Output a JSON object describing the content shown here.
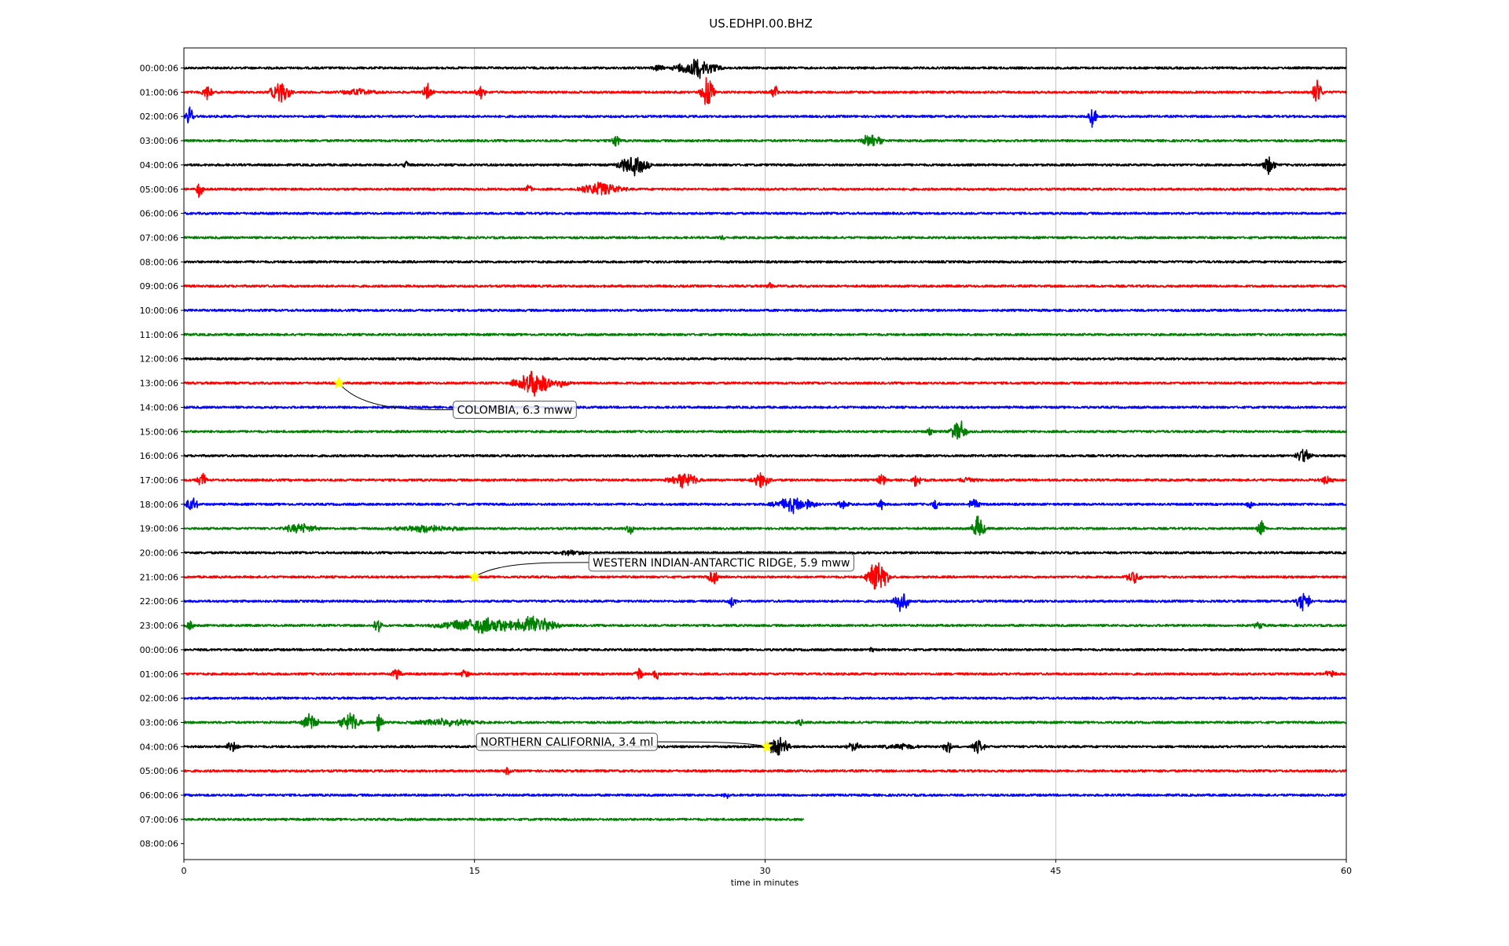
{
  "chart_data": {
    "type": "line",
    "title": "US.EDHPI.00.BHZ",
    "xlabel": "time in minutes",
    "ylabel": "",
    "xlim": [
      0,
      60
    ],
    "xticks": [
      0,
      15,
      30,
      45,
      60
    ],
    "xtick_labels": [
      "0",
      "15",
      "30",
      "45",
      "60"
    ],
    "grid": "vertical at x ticks",
    "row_labels": [
      "00:00:06",
      "01:00:06",
      "02:00:06",
      "03:00:06",
      "04:00:06",
      "05:00:06",
      "06:00:06",
      "07:00:06",
      "08:00:06",
      "09:00:06",
      "10:00:06",
      "11:00:06",
      "12:00:06",
      "13:00:06",
      "14:00:06",
      "15:00:06",
      "16:00:06",
      "17:00:06",
      "18:00:06",
      "19:00:06",
      "20:00:06",
      "21:00:06",
      "22:00:06",
      "23:00:06",
      "00:00:06",
      "01:00:06",
      "02:00:06",
      "03:00:06",
      "04:00:06",
      "05:00:06",
      "06:00:06",
      "07:00:06",
      "08:00:06"
    ],
    "trace_colors": [
      "#000000",
      "#ff0000",
      "#0000ff",
      "#008000"
    ],
    "trace_end_minutes": [
      60,
      60,
      60,
      60,
      60,
      60,
      60,
      60,
      60,
      60,
      60,
      60,
      60,
      60,
      60,
      60,
      60,
      60,
      60,
      60,
      60,
      60,
      60,
      60,
      60,
      60,
      60,
      60,
      60,
      60,
      60,
      32,
      0
    ],
    "bursts": [
      [
        [
          26.5,
          1.6,
          1.0
        ],
        [
          24.5,
          0.5,
          0.4
        ]
      ],
      [
        [
          5.0,
          0.8,
          1.1
        ],
        [
          1.2,
          0.4,
          0.8
        ],
        [
          12.6,
          0.4,
          0.8
        ],
        [
          15.3,
          0.4,
          0.7
        ],
        [
          27.0,
          0.5,
          1.5
        ],
        [
          30.5,
          0.3,
          0.9
        ],
        [
          58.5,
          0.4,
          1.4
        ],
        [
          9.0,
          1.5,
          0.4
        ]
      ],
      [
        [
          0.3,
          0.3,
          1.2
        ],
        [
          46.9,
          0.3,
          1.1
        ]
      ],
      [
        [
          22.3,
          0.3,
          0.8
        ],
        [
          35.5,
          0.8,
          0.8
        ]
      ],
      [
        [
          11.5,
          0.3,
          0.5
        ],
        [
          23.2,
          1.2,
          1.0
        ],
        [
          56.0,
          0.5,
          1.0
        ]
      ],
      [
        [
          0.8,
          0.3,
          0.8
        ],
        [
          21.5,
          1.7,
          0.8
        ],
        [
          17.8,
          0.3,
          0.5
        ]
      ],
      [],
      [
        [
          27.8,
          0.3,
          0.3
        ]
      ],
      [],
      [
        [
          30.2,
          0.3,
          0.4
        ]
      ],
      [],
      [],
      [],
      [
        [
          18.0,
          1.3,
          1.4
        ],
        [
          19.5,
          0.8,
          0.4
        ]
      ],
      [],
      [
        [
          40.0,
          0.6,
          1.2
        ],
        [
          38.5,
          0.3,
          0.4
        ]
      ],
      [
        [
          57.8,
          0.6,
          0.8
        ]
      ],
      [
        [
          0.9,
          0.4,
          0.8
        ],
        [
          25.8,
          1.2,
          0.8
        ],
        [
          29.8,
          0.8,
          0.8
        ],
        [
          36.0,
          0.3,
          0.8
        ],
        [
          37.8,
          0.3,
          0.8
        ],
        [
          40.5,
          0.8,
          0.4
        ],
        [
          59.0,
          0.6,
          0.5
        ]
      ],
      [
        [
          0.4,
          0.5,
          0.8
        ],
        [
          31.5,
          1.6,
          0.8
        ],
        [
          34.0,
          0.6,
          0.4
        ],
        [
          36.0,
          0.3,
          0.6
        ],
        [
          38.8,
          0.3,
          0.6
        ],
        [
          40.8,
          0.4,
          0.7
        ],
        [
          55.0,
          0.3,
          0.5
        ]
      ],
      [
        [
          6.0,
          1.5,
          0.5
        ],
        [
          23.0,
          0.3,
          0.8
        ],
        [
          41.0,
          0.5,
          1.2
        ],
        [
          55.6,
          0.3,
          1.0
        ],
        [
          12.5,
          3.0,
          0.4
        ]
      ],
      [
        [
          20.0,
          1.5,
          0.3
        ]
      ],
      [
        [
          27.3,
          0.4,
          0.9
        ],
        [
          35.8,
          0.8,
          1.6
        ],
        [
          49.0,
          0.6,
          0.7
        ]
      ],
      [
        [
          28.3,
          0.3,
          0.7
        ],
        [
          37.0,
          0.6,
          1.2
        ],
        [
          57.8,
          0.5,
          1.3
        ]
      ],
      [
        [
          0.3,
          0.3,
          0.7
        ],
        [
          10.0,
          0.3,
          1.0
        ],
        [
          15.5,
          3.5,
          0.8
        ],
        [
          18.0,
          1.8,
          1.0
        ],
        [
          55.5,
          0.5,
          0.4
        ]
      ],
      [
        [
          35.5,
          0.3,
          0.3
        ]
      ],
      [
        [
          11.0,
          0.4,
          0.6
        ],
        [
          14.5,
          0.4,
          0.5
        ],
        [
          23.5,
          0.3,
          0.7
        ],
        [
          24.4,
          0.3,
          0.7
        ],
        [
          59.2,
          0.6,
          0.4
        ]
      ],
      [],
      [
        [
          6.5,
          0.6,
          1.0
        ],
        [
          8.6,
          0.8,
          1.0
        ],
        [
          10.1,
          0.3,
          1.3
        ],
        [
          13.5,
          3.0,
          0.4
        ],
        [
          31.8,
          0.3,
          0.5
        ]
      ],
      [
        [
          2.5,
          0.5,
          0.6
        ],
        [
          30.7,
          0.8,
          1.1
        ],
        [
          34.6,
          0.6,
          0.5
        ],
        [
          39.4,
          0.4,
          0.8
        ],
        [
          41.0,
          0.5,
          0.7
        ],
        [
          37.0,
          2.0,
          0.3
        ]
      ],
      [
        [
          16.7,
          0.3,
          0.4
        ]
      ],
      [
        [
          28.0,
          0.3,
          0.4
        ]
      ],
      [],
      []
    ],
    "events": [
      {
        "label": "COLOMBIA, 6.3 mww",
        "row": 13,
        "minute": 8.0,
        "label_row": 14.1,
        "label_minute": 13.9
      },
      {
        "label": "WESTERN INDIAN-ANTARCTIC RIDGE, 5.9 mww",
        "row": 21,
        "minute": 15.0,
        "label_row": 20.4,
        "label_minute": 20.9
      },
      {
        "label": "NORTHERN CALIFORNIA, 3.4 ml",
        "row": 28,
        "minute": 30.1,
        "label_row": 27.8,
        "label_minute": 15.1
      }
    ]
  }
}
